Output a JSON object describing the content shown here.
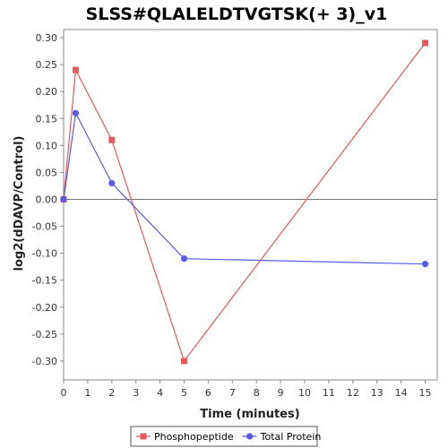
{
  "chart_data": {
    "type": "line",
    "title": "SLSS#QLALELDTVGTSK(+ 3)_v1",
    "xlabel": "Time (minutes)",
    "ylabel": "log2(dDAVP/Control)",
    "xlim": [
      0,
      15.5
    ],
    "ylim": [
      -0.335,
      0.315
    ],
    "x_ticks": [
      0,
      1,
      2,
      3,
      4,
      5,
      6,
      7,
      8,
      9,
      10,
      11,
      12,
      13,
      14,
      15
    ],
    "y_ticks": [
      -0.3,
      -0.25,
      -0.2,
      -0.15,
      -0.1,
      -0.05,
      0.0,
      0.05,
      0.1,
      0.15,
      0.2,
      0.25,
      0.3
    ],
    "x_tick_labels": [
      "0",
      "1",
      "2",
      "3",
      "4",
      "5",
      "6",
      "7",
      "8",
      "9",
      "10",
      "11",
      "12",
      "13",
      "14",
      "15"
    ],
    "y_tick_labels": [
      "-0.30",
      "-0.25",
      "-0.20",
      "-0.15",
      "-0.10",
      "-0.05",
      "0.00",
      "0.05",
      "0.10",
      "0.15",
      "0.20",
      "0.25",
      "0.30"
    ],
    "zero_line": true,
    "grid": false,
    "legend_position": "bottom",
    "series": [
      {
        "name": "Phosphopeptide",
        "color": "#e8585a",
        "marker": "square",
        "x": [
          0,
          0.5,
          2,
          5,
          15
        ],
        "y": [
          0.0,
          0.24,
          0.11,
          -0.3,
          0.29
        ]
      },
      {
        "name": "Total Protein",
        "color": "#5a5ae8",
        "marker": "circle",
        "x": [
          0,
          0.5,
          2,
          5,
          15
        ],
        "y": [
          0.0,
          0.16,
          0.03,
          -0.11,
          -0.12
        ]
      }
    ]
  }
}
